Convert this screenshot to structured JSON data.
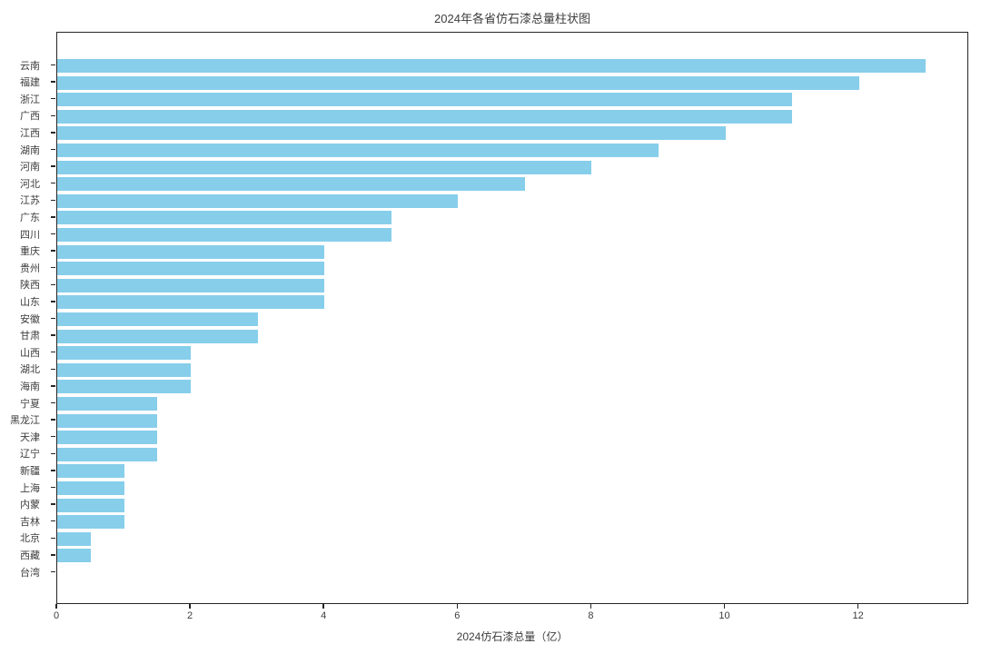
{
  "chart_data": {
    "type": "bar",
    "orientation": "horizontal",
    "title": "2024年各省仿石漆总量柱状图",
    "xlabel": "2024仿石漆总量（亿）",
    "ylabel": "",
    "categories": [
      "云南",
      "福建",
      "浙江",
      "广西",
      "江西",
      "湖南",
      "河南",
      "河北",
      "江苏",
      "广东",
      "四川",
      "重庆",
      "贵州",
      "陕西",
      "山东",
      "安徽",
      "甘肃",
      "山西",
      "湖北",
      "海南",
      "宁夏",
      "黑龙江",
      "天津",
      "辽宁",
      "新疆",
      "上海",
      "内蒙",
      "吉林",
      "北京",
      "西藏",
      "台湾"
    ],
    "values": [
      13,
      12,
      11,
      11,
      10,
      9,
      8,
      7,
      6,
      5,
      5,
      4,
      4,
      4,
      4,
      3,
      3,
      2,
      2,
      2,
      1.5,
      1.5,
      1.5,
      1.5,
      1,
      1,
      1,
      1,
      0.5,
      0.5,
      0
    ],
    "x_ticks": [
      0,
      2,
      4,
      6,
      8,
      10,
      12
    ],
    "xlim": [
      0,
      13.65
    ],
    "grid": false,
    "legend": "none",
    "bar_color": "#87CEEB",
    "text_color": "#3d3d3d",
    "background_color": "#ffffff"
  }
}
